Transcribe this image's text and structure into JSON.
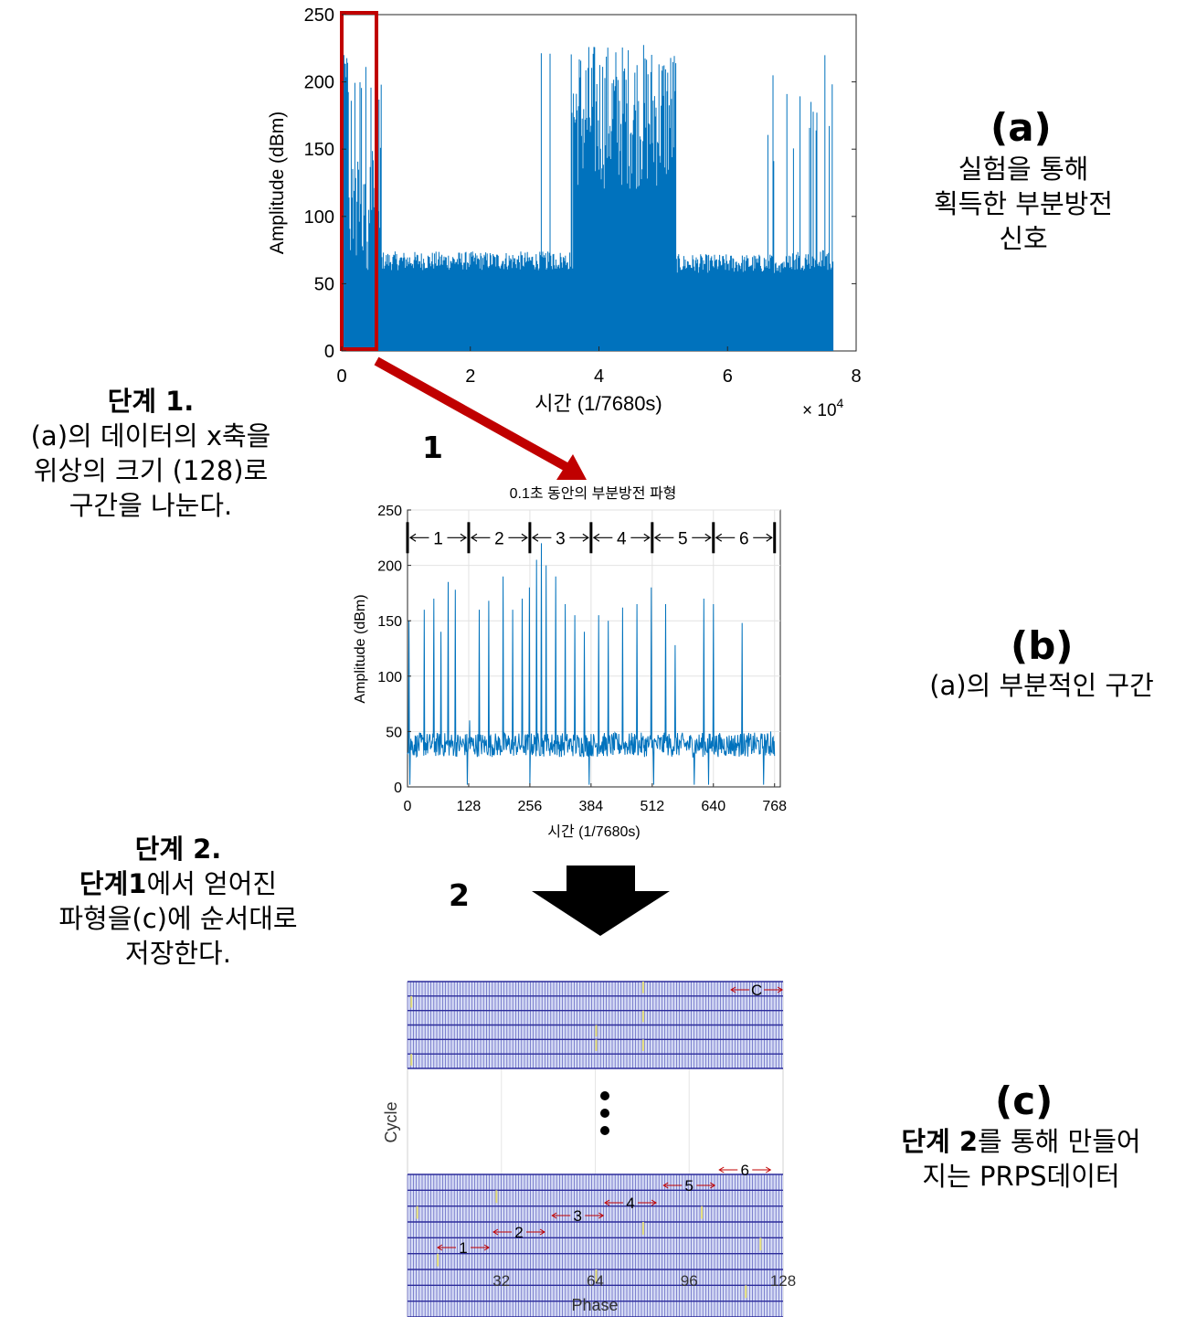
{
  "panel_a": {
    "ylabel": "Amplitude (dBm)",
    "xlabel": "시간   (1/7680s)",
    "x_multiplier": "× 10",
    "x_multiplier_exp": "4",
    "yticks": [
      "0",
      "50",
      "100",
      "150",
      "200",
      "250"
    ],
    "xticks": [
      "0",
      "2",
      "4",
      "6",
      "8"
    ],
    "label": "(a)",
    "caption_lines": [
      "실험을 통해",
      "획득한 부분방전",
      "신호"
    ]
  },
  "panel_b": {
    "title": "0.1초 동안의 부분방전 파형",
    "ylabel": "Amplitude (dBm)",
    "xlabel": "시간 (1/7680s)",
    "yticks": [
      "0",
      "50",
      "100",
      "150",
      "200",
      "250"
    ],
    "xticks": [
      "0",
      "128",
      "256",
      "384",
      "512",
      "640",
      "768"
    ],
    "segments": [
      "1",
      "2",
      "3",
      "4",
      "5",
      "6"
    ],
    "label": "(b)",
    "caption": "(a)의 부분적인 구간"
  },
  "panel_c": {
    "ylabel": "Cycle",
    "xlabel": "Phase",
    "xticks": [
      "32",
      "64",
      "96",
      "128"
    ],
    "row_labels": [
      "1",
      "2",
      "3",
      "4",
      "5",
      "6"
    ],
    "top_row_label": "C",
    "label": "(c)",
    "caption_line1_bold": "단계 2",
    "caption_line1_rest": "를 통해 만들어",
    "caption_line2": "지는 PRPS데이터"
  },
  "step1": {
    "title": "단계 1.",
    "lines": [
      "(a)의 데이터의 x축을",
      "위상의 크기 (128)로",
      "구간을 나눈다."
    ],
    "arrow_number": "1"
  },
  "step2": {
    "title": "단계 2.",
    "line1_bold": "단계1",
    "line1_rest": "에서 얻어진",
    "lines": [
      "파형을(c)에 순서대로",
      "저장한다."
    ],
    "arrow_number": "2"
  },
  "colors": {
    "signal": "#0072BD",
    "highlight": "#C00000",
    "arrow": "#C00000",
    "prps_line": "#3B3BB0",
    "prps_peak": "#E8E27A",
    "row_arrow": "#C00000"
  }
}
